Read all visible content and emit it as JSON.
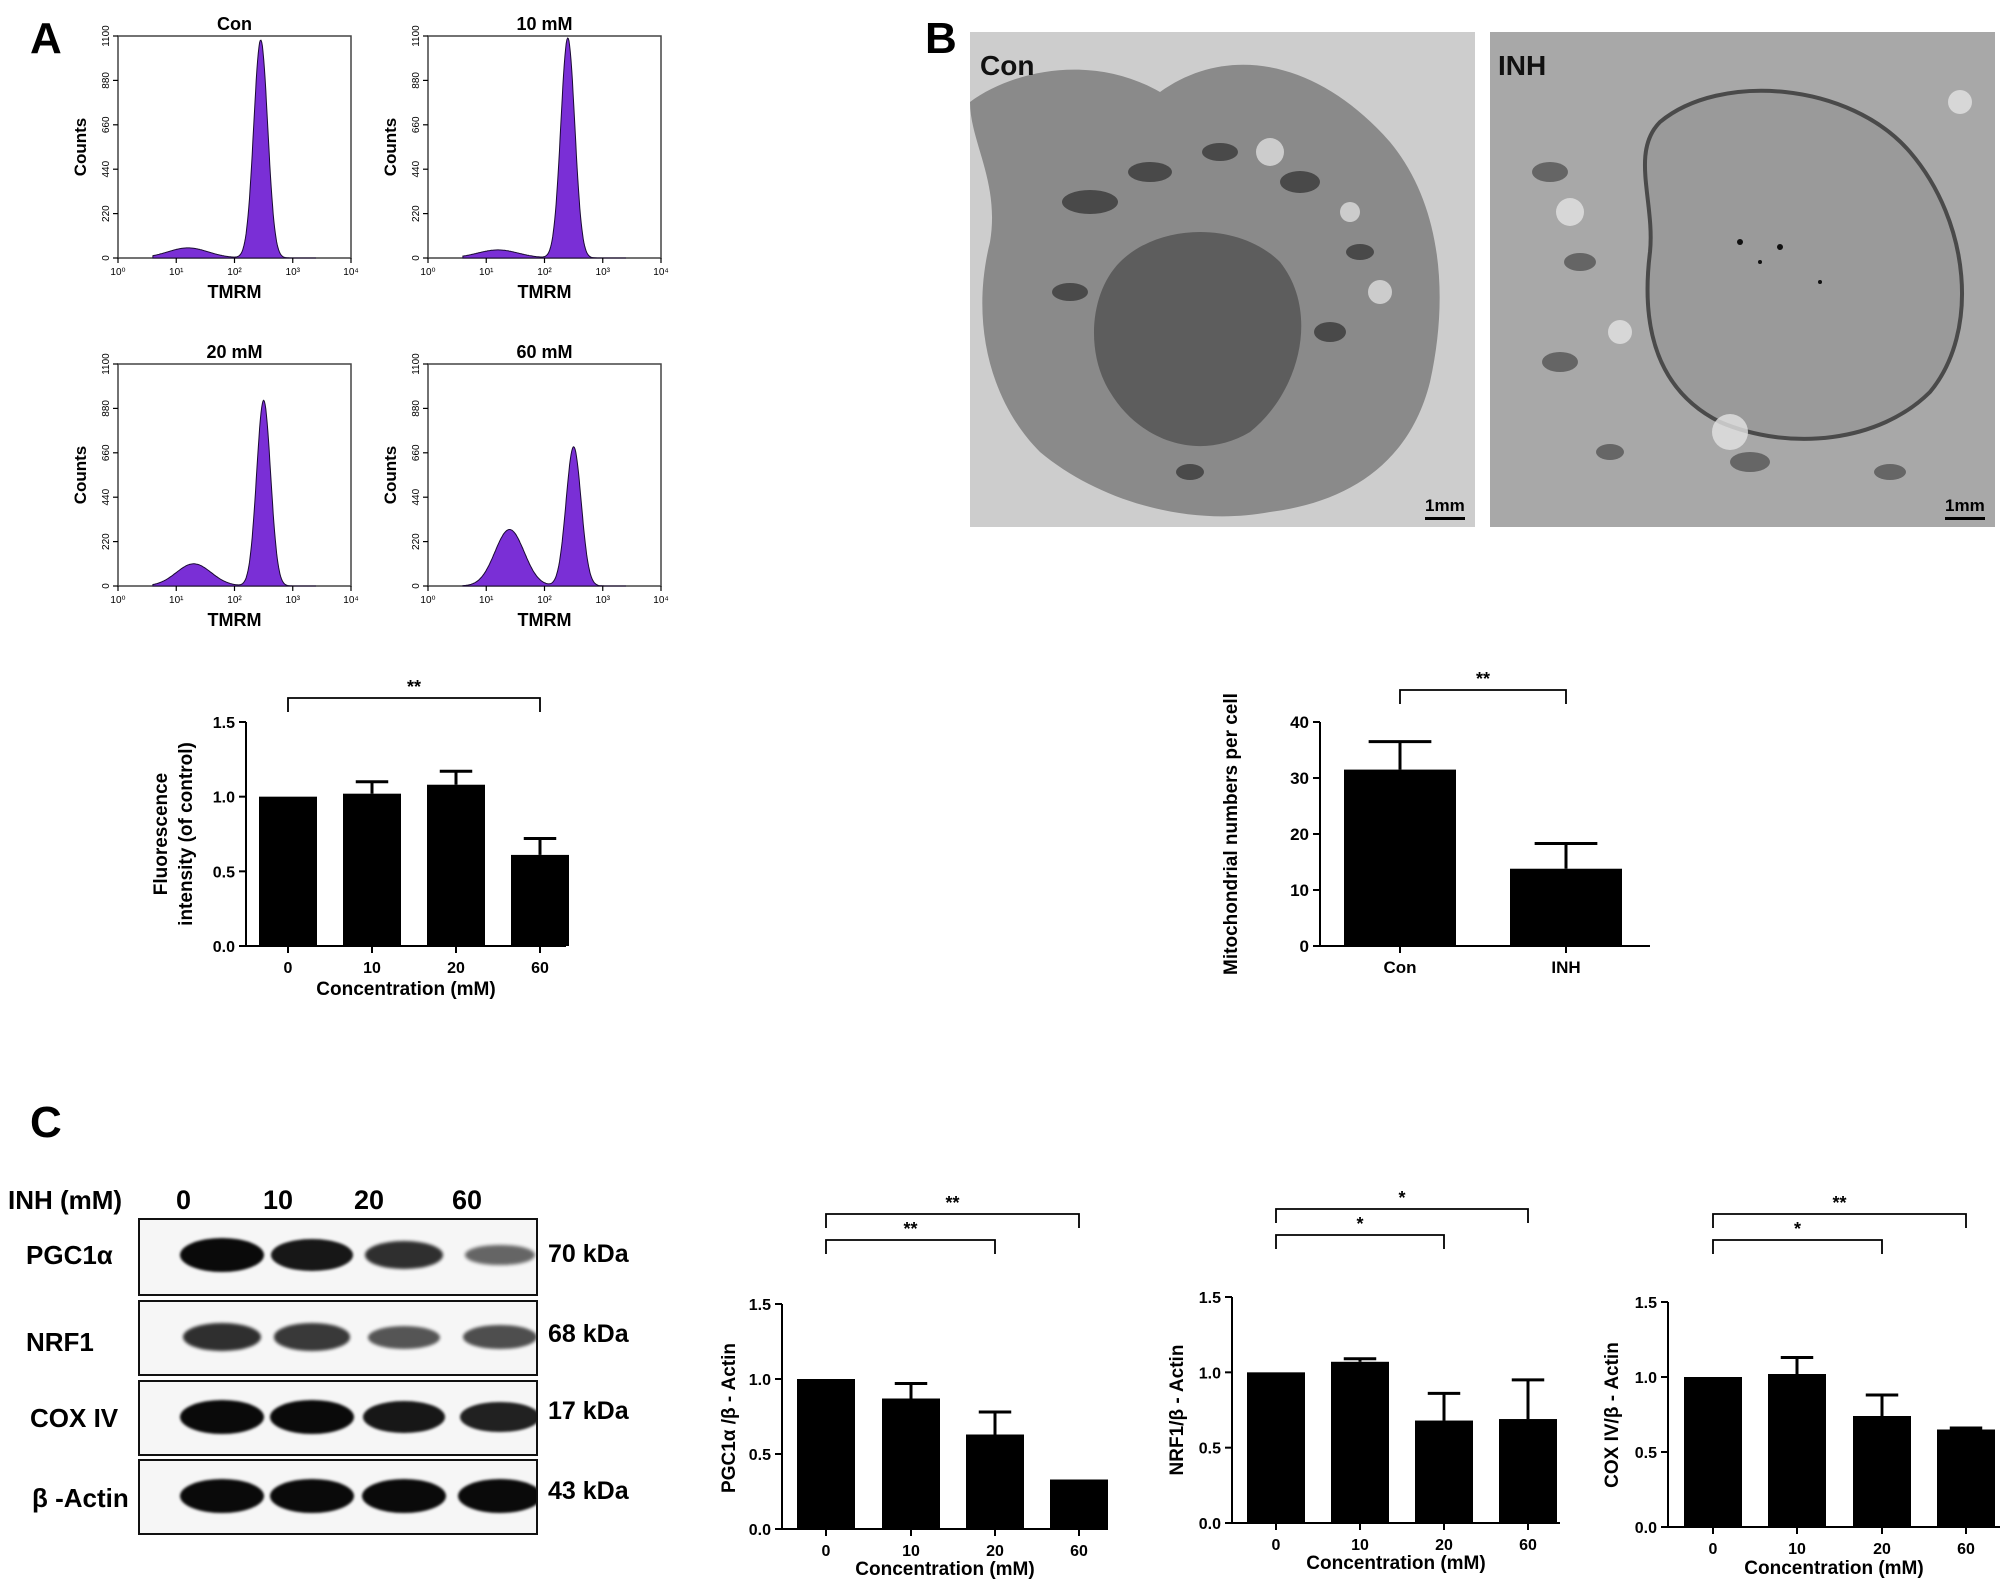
{
  "panels": {
    "A": "A",
    "B": "B",
    "C": "C"
  },
  "colors": {
    "histogram_fill": "#7a2fd6",
    "bar_fill": "#000000"
  },
  "flow_histograms": [
    {
      "title": "Con",
      "xlabel": "TMRM",
      "ylabel": "Counts",
      "yticks": [
        "0",
        "220",
        "440",
        "660",
        "880",
        "1100"
      ],
      "xticks": [
        "10⁰",
        "10¹",
        "10²",
        "10³",
        "10⁴"
      ],
      "peaks": [
        {
          "log_x": 2.45,
          "count": 1080,
          "width": 0.12
        },
        {
          "log_x": 1.2,
          "count": 50,
          "width": 0.35
        }
      ]
    },
    {
      "title": "10  mM",
      "xlabel": "TMRM",
      "ylabel": "Counts",
      "yticks": [
        "0",
        "220",
        "440",
        "660",
        "880",
        "1100"
      ],
      "xticks": [
        "10⁰",
        "10¹",
        "10²",
        "10³",
        "10⁴"
      ],
      "peaks": [
        {
          "log_x": 2.4,
          "count": 1090,
          "width": 0.12
        },
        {
          "log_x": 1.2,
          "count": 40,
          "width": 0.35
        }
      ]
    },
    {
      "title": "20 mM",
      "xlabel": "TMRM",
      "ylabel": "Counts",
      "yticks": [
        "0",
        "220",
        "440",
        "660",
        "880",
        "1100"
      ],
      "xticks": [
        "10⁰",
        "10¹",
        "10²",
        "10³",
        "10⁴"
      ],
      "peaks": [
        {
          "log_x": 2.5,
          "count": 920,
          "width": 0.12
        },
        {
          "log_x": 1.3,
          "count": 110,
          "width": 0.3
        }
      ]
    },
    {
      "title": "60 mM",
      "xlabel": "TMRM",
      "ylabel": "Counts",
      "yticks": [
        "0",
        "220",
        "440",
        "660",
        "880",
        "1100"
      ],
      "xticks": [
        "10⁰",
        "10¹",
        "10²",
        "10³",
        "10⁴"
      ],
      "peaks": [
        {
          "log_x": 2.5,
          "count": 690,
          "width": 0.13
        },
        {
          "log_x": 1.4,
          "count": 280,
          "width": 0.25
        }
      ]
    }
  ],
  "chart_data": [
    {
      "type": "bar",
      "categories": [
        "0",
        "10",
        "20",
        "60"
      ],
      "values": [
        1.0,
        1.02,
        1.08,
        0.61
      ],
      "errors": [
        0,
        0.08,
        0.09,
        0.11
      ],
      "xlabel": "Concentration (mM)",
      "ylabel": [
        "Fluorescence",
        "intensity (of control)"
      ],
      "ylim": [
        0,
        1.5
      ],
      "yticks": [
        "0.0",
        "0.5",
        "1.0",
        "1.5"
      ],
      "significance": [
        {
          "from": 0,
          "to": 3,
          "label": "**"
        }
      ]
    },
    {
      "type": "bar",
      "categories": [
        "Con",
        "INH"
      ],
      "values": [
        31.5,
        13.8
      ],
      "errors": [
        5.0,
        4.5
      ],
      "xlabel": "",
      "ylabel": [
        "Mitochondrial numbers per cell"
      ],
      "ylim": [
        0,
        40
      ],
      "yticks": [
        "0",
        "10",
        "20",
        "30",
        "40"
      ],
      "significance": [
        {
          "from": 0,
          "to": 1,
          "label": "**"
        }
      ]
    },
    {
      "type": "bar",
      "categories": [
        "0",
        "10",
        "20",
        "60"
      ],
      "values": [
        1.0,
        0.87,
        0.63,
        0.33
      ],
      "errors": [
        0,
        0.1,
        0.15,
        0
      ],
      "xlabel": "Concentration (mM)",
      "ylabel": [
        "PGC1α /β - Actin"
      ],
      "ylim": [
        0,
        1.5
      ],
      "yticks": [
        "0.0",
        "0.5",
        "1.0",
        "1.5"
      ],
      "significance": [
        {
          "from": 0,
          "to": 2,
          "label": "**"
        },
        {
          "from": 0,
          "to": 3,
          "label": "**"
        }
      ]
    },
    {
      "type": "bar",
      "categories": [
        "0",
        "10",
        "20",
        "60"
      ],
      "values": [
        1.0,
        1.07,
        0.68,
        0.69
      ],
      "errors": [
        0,
        0.02,
        0.18,
        0.26
      ],
      "xlabel": "Concentration (mM)",
      "ylabel": [
        "NRF1/β - Actin"
      ],
      "ylim": [
        0,
        1.5
      ],
      "yticks": [
        "0.0",
        "0.5",
        "1.0",
        "1.5"
      ],
      "significance": [
        {
          "from": 0,
          "to": 2,
          "label": "*"
        },
        {
          "from": 0,
          "to": 3,
          "label": "*"
        }
      ]
    },
    {
      "type": "bar",
      "categories": [
        "0",
        "10",
        "20",
        "60"
      ],
      "values": [
        1.0,
        1.02,
        0.74,
        0.65
      ],
      "errors": [
        0,
        0.11,
        0.14,
        0.01
      ],
      "xlabel": "Concentration (mM)",
      "ylabel": [
        "COX IV/β - Actin"
      ],
      "ylim": [
        0,
        1.5
      ],
      "yticks": [
        "0.0",
        "0.5",
        "1.0",
        "1.5"
      ],
      "significance": [
        {
          "from": 0,
          "to": 2,
          "label": "*"
        },
        {
          "from": 0,
          "to": 3,
          "label": "**"
        }
      ]
    }
  ],
  "em_images": [
    {
      "label": "Con",
      "scale": "1mm"
    },
    {
      "label": "INH",
      "scale": "1mm"
    }
  ],
  "western_blot": {
    "header_label": "INH (mM)",
    "lanes": [
      "0",
      "10",
      "20",
      "60"
    ],
    "rows": [
      {
        "protein": "PGC1α",
        "size": "70 kDa",
        "intensity": [
          1.0,
          0.9,
          0.75,
          0.4
        ]
      },
      {
        "protein": "NRF1",
        "size": "68 kDa",
        "intensity": [
          0.75,
          0.7,
          0.5,
          0.55
        ]
      },
      {
        "protein": "COX IV",
        "size": "17 kDa",
        "intensity": [
          1.0,
          1.0,
          0.9,
          0.85
        ]
      },
      {
        "protein": "β -Actin",
        "size": "43 kDa",
        "intensity": [
          1.0,
          1.0,
          1.0,
          1.0
        ]
      }
    ]
  }
}
